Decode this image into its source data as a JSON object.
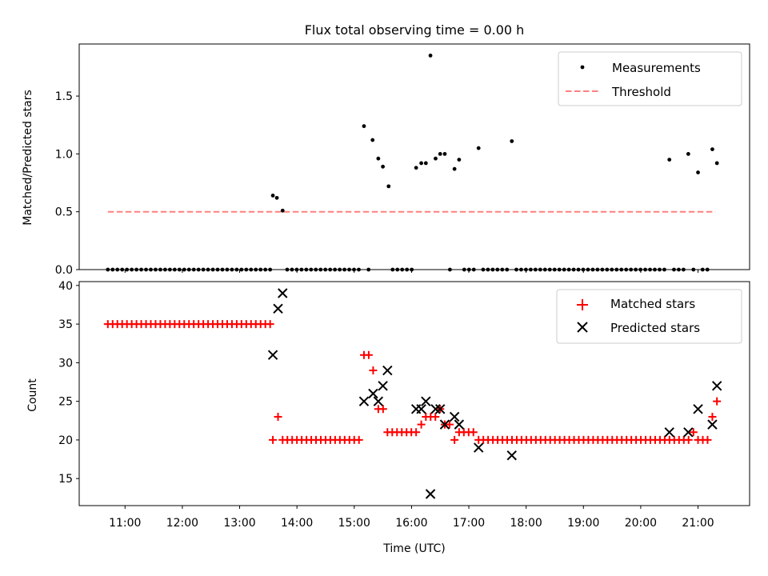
{
  "chart_data": [
    {
      "type": "scatter",
      "title": "Flux total observing time = 0.00 h",
      "xlabel": "",
      "ylabel": "Matched/Predicted stars",
      "ylim": [
        0,
        1.95
      ],
      "xlim": [
        10.2,
        21.9
      ],
      "yticks": [
        0.0,
        0.5,
        1.0,
        1.5
      ],
      "ytick_labels": [
        "0.0",
        "0.5",
        "1.0",
        "1.5"
      ],
      "legend": {
        "position": "top-right",
        "entries": [
          "Measurements",
          "Threshold"
        ]
      },
      "threshold": {
        "name": "Threshold",
        "value": 0.5,
        "x_range": [
          10.7,
          21.3
        ],
        "color": "#ff8080"
      },
      "series": [
        {
          "name": "Measurements",
          "color": "#000000",
          "x": [
            13.58,
            13.65,
            13.75,
            15.17,
            15.32,
            15.42,
            15.5,
            15.6,
            16.08,
            16.17,
            16.25,
            16.33,
            16.42,
            16.5,
            16.58,
            16.75,
            16.83,
            17.17,
            17.75,
            20.5,
            20.83,
            21.0,
            21.25,
            21.33
          ],
          "y": [
            0.64,
            0.62,
            0.51,
            1.24,
            1.12,
            0.96,
            0.89,
            0.72,
            0.88,
            0.92,
            0.92,
            1.85,
            0.96,
            1.0,
            1.0,
            0.87,
            0.95,
            1.05,
            1.11,
            0.95,
            1.0,
            0.84,
            1.04,
            0.92
          ]
        }
      ],
      "zero_points": {
        "name": "Measurements (zero)",
        "y": 0,
        "x_ranges": [
          [
            10.7,
            13.5,
            0.0833
          ],
          [
            13.83,
            15.08,
            0.0833
          ],
          [
            15.25,
            15.25,
            0.0833
          ],
          [
            15.67,
            16.0,
            0.0833
          ],
          [
            16.67,
            16.67,
            0.0833
          ],
          [
            16.92,
            17.08,
            0.0833
          ],
          [
            17.25,
            17.67,
            0.0833
          ],
          [
            17.83,
            20.42,
            0.0833
          ],
          [
            20.58,
            20.75,
            0.0833
          ],
          [
            20.92,
            20.92,
            0.0833
          ],
          [
            21.08,
            21.17,
            0.0833
          ]
        ]
      }
    },
    {
      "type": "scatter",
      "title": "",
      "xlabel": "Time (UTC)",
      "ylabel": "Count",
      "ylim": [
        11.5,
        40.5
      ],
      "xlim": [
        10.2,
        21.9
      ],
      "yticks": [
        15,
        20,
        25,
        30,
        35,
        40
      ],
      "ytick_labels": [
        "15",
        "20",
        "25",
        "30",
        "35",
        "40"
      ],
      "xticks": [
        11,
        12,
        13,
        14,
        15,
        16,
        17,
        18,
        19,
        20,
        21
      ],
      "xtick_labels": [
        "11:00",
        "12:00",
        "13:00",
        "14:00",
        "15:00",
        "16:00",
        "17:00",
        "18:00",
        "19:00",
        "20:00",
        "21:00"
      ],
      "legend": {
        "position": "top-right",
        "entries": [
          "Matched stars",
          "Predicted stars"
        ]
      },
      "series": [
        {
          "name": "Matched stars",
          "color": "#ff0000",
          "segments": [
            {
              "x_range": [
                10.7,
                13.5,
                0.0833
              ],
              "y": 35
            },
            {
              "x_range": [
                13.58,
                13.58,
                0.0833
              ],
              "y": 20
            },
            {
              "x_range": [
                13.67,
                13.67,
                0.0833
              ],
              "y": 23
            },
            {
              "x_range": [
                13.75,
                15.08,
                0.0833
              ],
              "y": 20
            },
            {
              "x_range": [
                15.17,
                15.25,
                0.0833
              ],
              "y": 31
            },
            {
              "x_range": [
                15.33,
                15.33,
                0.0833
              ],
              "y": 29
            },
            {
              "x_range": [
                15.42,
                15.5,
                0.0833
              ],
              "y": 24
            },
            {
              "x_range": [
                15.58,
                16.08,
                0.0833
              ],
              "y": 21
            },
            {
              "x_range": [
                16.17,
                16.17,
                0.0833
              ],
              "y": 22
            },
            {
              "x_range": [
                16.25,
                16.42,
                0.0833
              ],
              "y": 23
            },
            {
              "x_range": [
                16.5,
                16.5,
                0.0833
              ],
              "y": 24
            },
            {
              "x_range": [
                16.58,
                16.67,
                0.0833
              ],
              "y": 22
            },
            {
              "x_range": [
                16.75,
                16.75,
                0.0833
              ],
              "y": 20
            },
            {
              "x_range": [
                16.83,
                17.08,
                0.0833
              ],
              "y": 21
            },
            {
              "x_range": [
                17.17,
                20.83,
                0.0833
              ],
              "y": 20
            },
            {
              "x_range": [
                20.92,
                20.92,
                0.0833
              ],
              "y": 21
            },
            {
              "x_range": [
                21.0,
                21.17,
                0.0833
              ],
              "y": 20
            },
            {
              "x_range": [
                21.25,
                21.25,
                0.0833
              ],
              "y": 23
            },
            {
              "x_range": [
                21.33,
                21.33,
                0.0833
              ],
              "y": 25
            }
          ]
        },
        {
          "name": "Predicted stars",
          "color": "#000000",
          "x": [
            13.58,
            13.67,
            13.75,
            15.17,
            15.33,
            15.42,
            15.5,
            15.58,
            16.08,
            16.17,
            16.25,
            16.33,
            16.42,
            16.5,
            16.58,
            16.75,
            16.83,
            17.17,
            17.75,
            20.5,
            20.83,
            21.0,
            21.25,
            21.33
          ],
          "y": [
            31,
            37,
            39,
            25,
            26,
            25,
            27,
            29,
            24,
            24,
            25,
            13,
            24,
            24,
            22,
            23,
            22,
            19,
            18,
            21,
            21,
            24,
            22,
            27
          ]
        }
      ]
    }
  ]
}
